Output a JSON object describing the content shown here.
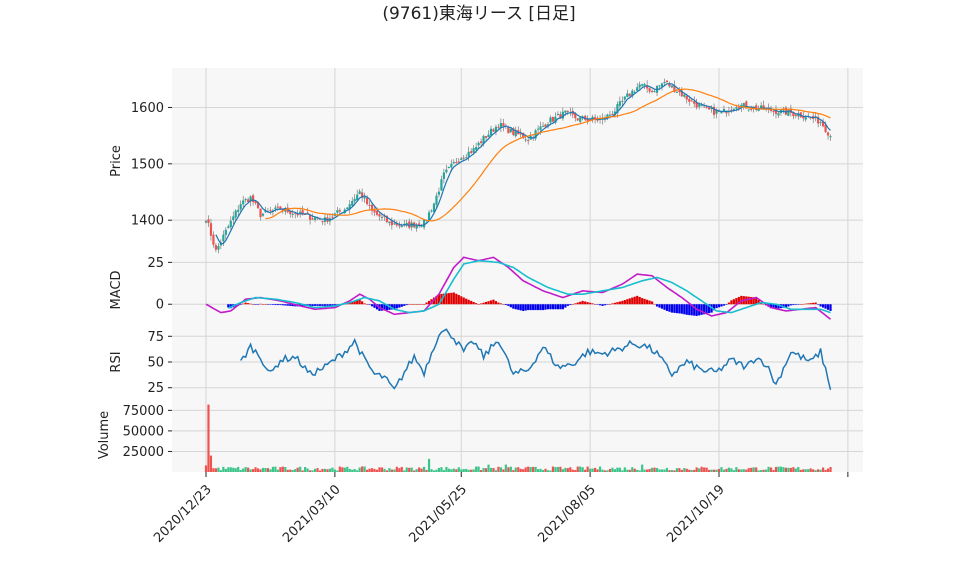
{
  "title": "(9761)東海リース  [日足]",
  "colors": {
    "up": "#26a69a",
    "up_alt": "#3cc58a",
    "down": "#ef5350",
    "ma_short": "#1f77b4",
    "ma_long": "#ff7f0e",
    "macd": "#c21cc9",
    "signal": "#17becf",
    "hist_pos": "#e00000",
    "hist_neg": "#0000ee",
    "rsi": "#1f77b4",
    "vol_up": "#3cc58a",
    "vol_down": "#ef5350",
    "panel_bg": "#f7f7f7",
    "grid": "#d6d6d6"
  },
  "chart_data": {
    "type": "candlestick",
    "title": "(9761)東海リース  [日足]",
    "x_tick_labels": [
      "2020/12/23",
      "2021/03/10",
      "2021/05/25",
      "2021/08/05",
      "2021/10/19"
    ],
    "x_tick_days": [
      0,
      52,
      103,
      155,
      207
    ],
    "n_days": 253,
    "price_panel": {
      "ylabel": "Price",
      "yticks": [
        1400,
        1500,
        1600
      ],
      "ylim": [
        1340,
        1670
      ],
      "anchors": [
        [
          0,
          1405
        ],
        [
          4,
          1345
        ],
        [
          8,
          1380
        ],
        [
          14,
          1430
        ],
        [
          18,
          1440
        ],
        [
          22,
          1410
        ],
        [
          30,
          1420
        ],
        [
          38,
          1410
        ],
        [
          48,
          1400
        ],
        [
          56,
          1420
        ],
        [
          62,
          1450
        ],
        [
          67,
          1415
        ],
        [
          74,
          1395
        ],
        [
          80,
          1390
        ],
        [
          88,
          1395
        ],
        [
          92,
          1430
        ],
        [
          96,
          1480
        ],
        [
          102,
          1510
        ],
        [
          108,
          1525
        ],
        [
          112,
          1545
        ],
        [
          118,
          1570
        ],
        [
          124,
          1555
        ],
        [
          130,
          1545
        ],
        [
          138,
          1575
        ],
        [
          145,
          1590
        ],
        [
          150,
          1580
        ],
        [
          160,
          1578
        ],
        [
          165,
          1595
        ],
        [
          170,
          1620
        ],
        [
          175,
          1640
        ],
        [
          180,
          1630
        ],
        [
          185,
          1645
        ],
        [
          190,
          1630
        ],
        [
          196,
          1610
        ],
        [
          202,
          1595
        ],
        [
          208,
          1590
        ],
        [
          214,
          1605
        ],
        [
          220,
          1600
        ],
        [
          228,
          1595
        ],
        [
          236,
          1590
        ],
        [
          242,
          1585
        ],
        [
          248,
          1575
        ],
        [
          252,
          1550
        ]
      ]
    },
    "macd_panel": {
      "ylabel": "MACD",
      "yticks": [
        0,
        25
      ],
      "ylim": [
        -13,
        30
      ],
      "macd_anchors": [
        [
          0,
          0
        ],
        [
          6,
          -5
        ],
        [
          10,
          -4
        ],
        [
          16,
          3
        ],
        [
          22,
          4
        ],
        [
          30,
          2
        ],
        [
          38,
          -1
        ],
        [
          44,
          -3
        ],
        [
          52,
          -2
        ],
        [
          58,
          2
        ],
        [
          62,
          6
        ],
        [
          66,
          3
        ],
        [
          70,
          -2
        ],
        [
          76,
          -6
        ],
        [
          82,
          -5
        ],
        [
          88,
          -4
        ],
        [
          94,
          6
        ],
        [
          100,
          22
        ],
        [
          104,
          28
        ],
        [
          110,
          26
        ],
        [
          116,
          28
        ],
        [
          122,
          22
        ],
        [
          128,
          14
        ],
        [
          136,
          8
        ],
        [
          144,
          4
        ],
        [
          152,
          8
        ],
        [
          160,
          7
        ],
        [
          168,
          12
        ],
        [
          174,
          18
        ],
        [
          180,
          17
        ],
        [
          186,
          10
        ],
        [
          192,
          4
        ],
        [
          198,
          -3
        ],
        [
          204,
          -7
        ],
        [
          210,
          -5
        ],
        [
          216,
          2
        ],
        [
          222,
          4
        ],
        [
          228,
          -2
        ],
        [
          234,
          -4
        ],
        [
          240,
          -3
        ],
        [
          246,
          -2
        ],
        [
          252,
          -9
        ]
      ],
      "signal_anchors": [
        [
          0,
          null
        ],
        [
          8,
          -3
        ],
        [
          14,
          1
        ],
        [
          20,
          4
        ],
        [
          28,
          3
        ],
        [
          36,
          1
        ],
        [
          44,
          -2
        ],
        [
          52,
          -1
        ],
        [
          58,
          1
        ],
        [
          64,
          4
        ],
        [
          70,
          2
        ],
        [
          76,
          -3
        ],
        [
          82,
          -5
        ],
        [
          88,
          -4
        ],
        [
          94,
          0
        ],
        [
          100,
          15
        ],
        [
          104,
          24
        ],
        [
          110,
          26
        ],
        [
          118,
          25
        ],
        [
          124,
          22
        ],
        [
          130,
          16
        ],
        [
          138,
          10
        ],
        [
          146,
          6
        ],
        [
          152,
          6
        ],
        [
          160,
          8
        ],
        [
          168,
          10
        ],
        [
          176,
          14
        ],
        [
          182,
          16
        ],
        [
          188,
          13
        ],
        [
          194,
          8
        ],
        [
          200,
          2
        ],
        [
          206,
          -4
        ],
        [
          212,
          -5
        ],
        [
          218,
          -2
        ],
        [
          224,
          1
        ],
        [
          230,
          0
        ],
        [
          236,
          -3
        ],
        [
          242,
          -3
        ],
        [
          248,
          -3
        ],
        [
          252,
          -5
        ]
      ]
    },
    "rsi_panel": {
      "ylabel": "RSI",
      "yticks": [
        25,
        50,
        75
      ],
      "ylim": [
        15,
        85
      ],
      "anchors": [
        [
          14,
          50
        ],
        [
          18,
          65
        ],
        [
          22,
          55
        ],
        [
          26,
          38
        ],
        [
          30,
          52
        ],
        [
          36,
          55
        ],
        [
          42,
          38
        ],
        [
          48,
          45
        ],
        [
          56,
          60
        ],
        [
          60,
          70
        ],
        [
          64,
          52
        ],
        [
          68,
          38
        ],
        [
          72,
          35
        ],
        [
          76,
          22
        ],
        [
          80,
          40
        ],
        [
          84,
          55
        ],
        [
          88,
          40
        ],
        [
          94,
          78
        ],
        [
          98,
          80
        ],
        [
          104,
          60
        ],
        [
          108,
          70
        ],
        [
          112,
          55
        ],
        [
          118,
          72
        ],
        [
          124,
          38
        ],
        [
          130,
          42
        ],
        [
          136,
          65
        ],
        [
          142,
          45
        ],
        [
          148,
          48
        ],
        [
          154,
          60
        ],
        [
          160,
          58
        ],
        [
          166,
          62
        ],
        [
          172,
          68
        ],
        [
          178,
          65
        ],
        [
          182,
          58
        ],
        [
          188,
          38
        ],
        [
          194,
          50
        ],
        [
          200,
          42
        ],
        [
          206,
          40
        ],
        [
          212,
          52
        ],
        [
          218,
          45
        ],
        [
          222,
          55
        ],
        [
          226,
          48
        ],
        [
          230,
          28
        ],
        [
          236,
          60
        ],
        [
          240,
          55
        ],
        [
          244,
          50
        ],
        [
          248,
          60
        ],
        [
          252,
          25
        ]
      ]
    },
    "volume_panel": {
      "ylabel": "Volume",
      "yticks": [
        25000,
        50000,
        75000
      ],
      "ylim": [
        0,
        90000
      ],
      "spikes": [
        [
          0,
          8000
        ],
        [
          1,
          82000
        ],
        [
          2,
          20000
        ],
        [
          90,
          16000
        ],
        [
          114,
          9000
        ],
        [
          121,
          9000
        ],
        [
          176,
          9000
        ]
      ],
      "baseline": 4500
    }
  }
}
